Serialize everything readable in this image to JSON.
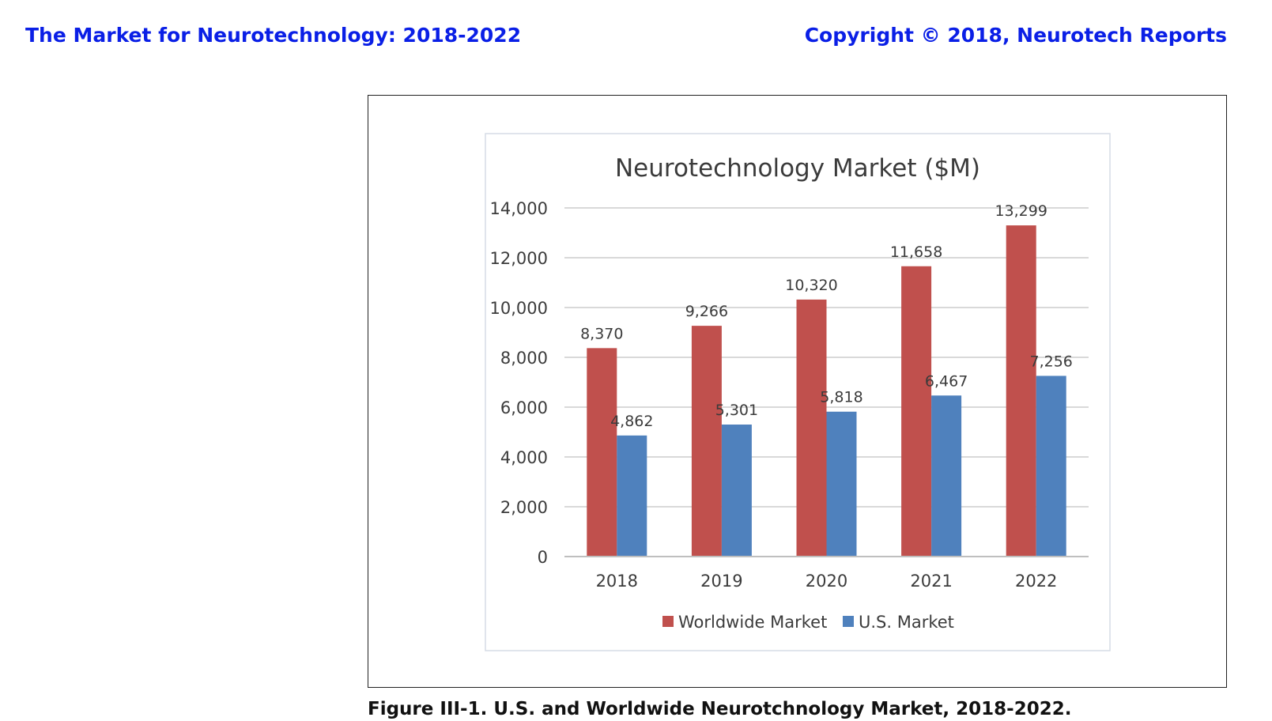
{
  "header": {
    "left_title": "The Market for Neurotechnology: 2018-2022",
    "right_title": "Copyright © 2018, Neurotech Reports"
  },
  "caption": "Figure III-1. U.S. and Worldwide Neurotchnology Market, 2018-2022.",
  "colors": {
    "header": "#0a1fe6",
    "worldwide": "#c0504d",
    "us": "#4f81bd",
    "grid": "#d9d9d9"
  },
  "chart_data": {
    "type": "bar",
    "title": "Neurotechnology Market ($M)",
    "xlabel": "",
    "ylabel": "",
    "categories": [
      "2018",
      "2019",
      "2020",
      "2021",
      "2022"
    ],
    "series": [
      {
        "name": "Worldwide Market",
        "color": "#c0504d",
        "values": [
          8370,
          9266,
          10320,
          11658,
          13299
        ],
        "labels": [
          "8,370",
          "9,266",
          "10,320",
          "11,658",
          "13,299"
        ]
      },
      {
        "name": "U.S. Market",
        "color": "#4f81bd",
        "values": [
          4862,
          5301,
          5818,
          6467,
          7256
        ],
        "labels": [
          "4,862",
          "5,301",
          "5,818",
          "6,467",
          "7,256"
        ]
      }
    ],
    "ylim": [
      0,
      14000
    ],
    "yticks": [
      0,
      2000,
      4000,
      6000,
      8000,
      10000,
      12000,
      14000
    ],
    "ytick_labels": [
      "0",
      "2,000",
      "4,000",
      "6,000",
      "8,000",
      "10,000",
      "12,000",
      "14,000"
    ],
    "grid": true,
    "legend": "bottom"
  }
}
